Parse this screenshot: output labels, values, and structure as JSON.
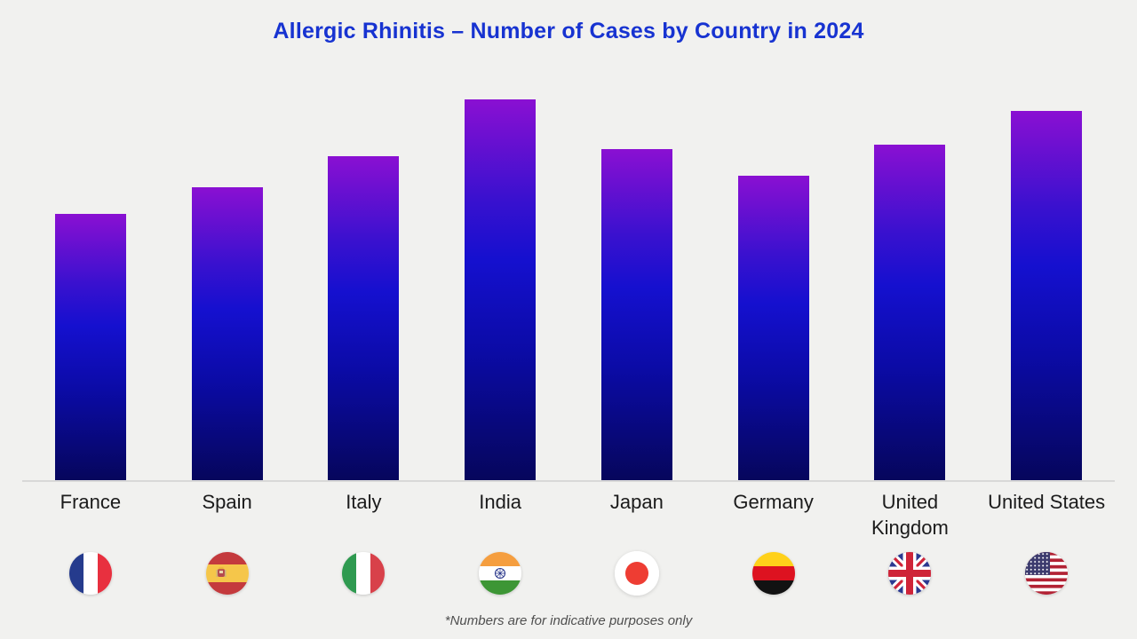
{
  "title": "Allergic Rhinitis – Number of Cases by Country in 2024",
  "footnote": "*Numbers are for indicative purposes only",
  "theme": {
    "bg": "#f1f1ef",
    "title_color": "#1733d1",
    "bar_top": "#8a10d2",
    "bar_mid": "#1510cf",
    "bar_bottom": "#06065c",
    "baseline": "#d8d8d8",
    "label_color": "#1b1b1b",
    "footnote_color": "#4f4f4f"
  },
  "chart_data": {
    "type": "bar",
    "title": "Allergic Rhinitis – Number of Cases by Country in 2024",
    "categories": [
      "France",
      "Spain",
      "Italy",
      "India",
      "Japan",
      "Germany",
      "United Kingdom",
      "United States"
    ],
    "values_relative_pct": [
      70,
      77,
      85,
      100,
      87,
      80,
      88,
      97
    ],
    "value_note": "no numeric axis, gridlines or data labels shown; values are relative bar heights as % of tallest bar (India)",
    "xlabel": "",
    "ylabel": "",
    "grid": false,
    "legend": "none",
    "bar_style": "vertical gradient, purple top to dark navy bottom",
    "flag_icons": [
      "france-flag-icon",
      "spain-flag-icon",
      "italy-flag-icon",
      "india-flag-icon",
      "japan-flag-icon",
      "germany-flag-icon",
      "united-kingdom-flag-icon",
      "united-states-flag-icon"
    ]
  }
}
